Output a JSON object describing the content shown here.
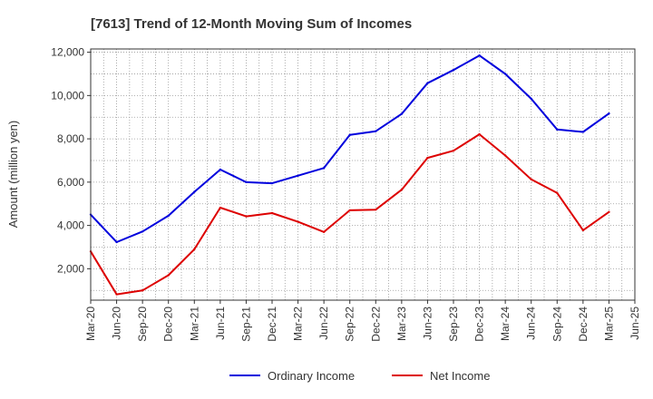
{
  "chart_data": {
    "type": "line",
    "title": "[7613]  Trend of 12-Month Moving Sum of Incomes",
    "xlabel": "",
    "ylabel": "Amount (million yen)",
    "ylim": [
      550,
      12150
    ],
    "yticks": [
      2000,
      4000,
      6000,
      8000,
      10000,
      12000
    ],
    "ytick_labels": [
      "2,000",
      "4,000",
      "6,000",
      "8,000",
      "10,000",
      "12,000"
    ],
    "categories": [
      "Mar-20",
      "Jun-20",
      "Sep-20",
      "Dec-20",
      "Mar-21",
      "Jun-21",
      "Sep-21",
      "Dec-21",
      "Mar-22",
      "Jun-22",
      "Sep-22",
      "Dec-22",
      "Mar-23",
      "Jun-23",
      "Sep-23",
      "Dec-23",
      "Mar-24",
      "Jun-24",
      "Sep-24",
      "Dec-24",
      "Mar-25",
      "Jun-25"
    ],
    "grid": true,
    "legend_position": "bottom",
    "series": [
      {
        "name": "Ordinary Income",
        "color": "#0000dd",
        "values": [
          4500,
          3230,
          3720,
          4450,
          5550,
          6580,
          6000,
          5950,
          6300,
          6650,
          8180,
          8350,
          9150,
          10570,
          11180,
          11850,
          11000,
          9850,
          8430,
          8320,
          9170,
          null
        ]
      },
      {
        "name": "Net Income",
        "color": "#dd0000",
        "values": [
          2800,
          820,
          1000,
          1700,
          2900,
          4820,
          4420,
          4570,
          4170,
          3700,
          4700,
          4730,
          5650,
          7120,
          7450,
          8210,
          7230,
          6130,
          5500,
          3780,
          4620,
          null
        ]
      }
    ]
  }
}
